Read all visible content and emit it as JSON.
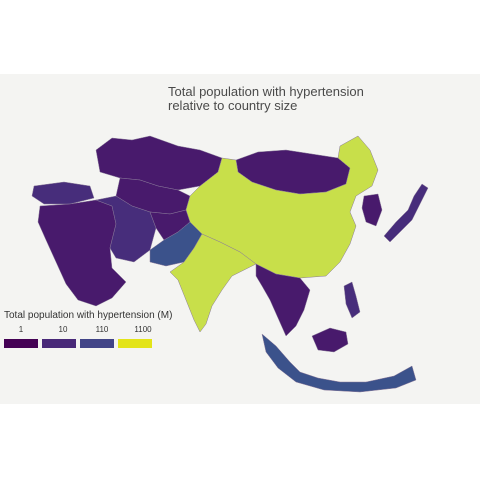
{
  "title": {
    "line1": "Total population with hypertension",
    "line2": "relative to country size"
  },
  "legend": {
    "title": "Total population with hypertension (M)",
    "labels": [
      "1",
      "10",
      "110",
      "1100"
    ],
    "colors": [
      "#440154",
      "#482878",
      "#414487",
      "#e3e418"
    ]
  },
  "palette": {
    "very_low": "#481a6c",
    "low": "#472d7b",
    "mid": "#3b528b",
    "high": "#c8df4a",
    "panel_background": "#f4f4f2",
    "border": "#8a7a9a"
  }
}
